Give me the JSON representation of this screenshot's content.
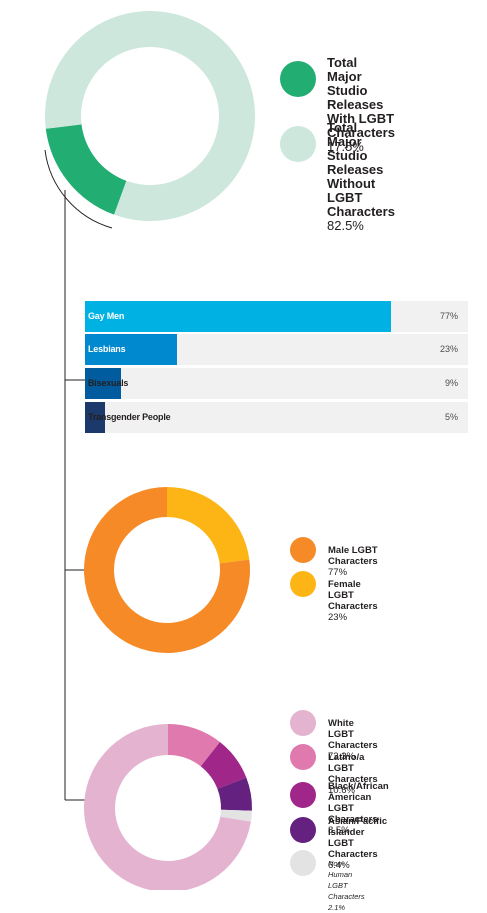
{
  "colors": {
    "with_lgbt": "#22ae72",
    "without_lgbt": "#cde7dc",
    "gay_men": "#00b2e3",
    "lesbians": "#0089cf",
    "bisexuals": "#005c9e",
    "transgender": "#1b3a6b",
    "bar_track": "#f1f1f2",
    "male": "#f58a26",
    "female": "#fdb515",
    "white": "#e3b3cf",
    "latino": "#e07aae",
    "black": "#a0268a",
    "asian": "#64217f",
    "nonhuman": "#e3e3e4",
    "connector": "#231f20"
  },
  "legend1": [
    {
      "lines": [
        "Total Major Studio",
        "Releases With LGBT"
      ],
      "last_line": "Characters",
      "pct": "17.5%"
    },
    {
      "lines": [
        "Total Major Studio",
        "Releases Without LGBT"
      ],
      "last_line": "Characters",
      "pct": "82.5%"
    }
  ],
  "legend2": [
    {
      "label": "Male LGBT Characters",
      "pct": "77%"
    },
    {
      "label": "Female LGBT Characters",
      "pct": "23%"
    }
  ],
  "legend3": [
    {
      "lines": [
        "White LGBT Characters"
      ],
      "pct": "72.3%"
    },
    {
      "lines": [
        "Latino/a LGBT Characters"
      ],
      "pct": "10.6%"
    },
    {
      "lines": [
        "Black/African American LGBT",
        "Characters"
      ],
      "pct": "8.5%"
    },
    {
      "lines": [
        "Asian/Pacific Islander LGBT",
        "Characters"
      ],
      "pct": "6.4%"
    },
    {
      "lines": [
        "Non-Human LGBT Characters"
      ],
      "pct": "2.1%"
    }
  ],
  "chart_data": [
    {
      "type": "pie",
      "variant": "donut",
      "categories": [
        "Total Major Studio Releases With LGBT Characters",
        "Total Major Studio Releases Without LGBT Characters"
      ],
      "values": [
        17.5,
        82.5
      ],
      "unit": "%"
    },
    {
      "type": "bar",
      "orientation": "horizontal",
      "categories": [
        "Gay Men",
        "Lesbians",
        "Bisexuals",
        "Transgender People"
      ],
      "values": [
        77,
        23,
        9,
        5
      ],
      "value_labels": [
        "77%",
        "23%",
        "9%",
        "5%"
      ],
      "xlim": [
        0,
        100
      ],
      "unit": "%"
    },
    {
      "type": "pie",
      "variant": "donut",
      "categories": [
        "Male LGBT Characters",
        "Female LGBT Characters"
      ],
      "values": [
        77,
        23
      ],
      "unit": "%"
    },
    {
      "type": "pie",
      "variant": "donut",
      "categories": [
        "White LGBT Characters",
        "Latino/a LGBT Characters",
        "Black/African American LGBT Characters",
        "Asian/Pacific Islander LGBT Characters",
        "Non-Human LGBT Characters"
      ],
      "values": [
        72.3,
        10.6,
        8.5,
        6.4,
        2.1
      ],
      "unit": "%"
    }
  ]
}
